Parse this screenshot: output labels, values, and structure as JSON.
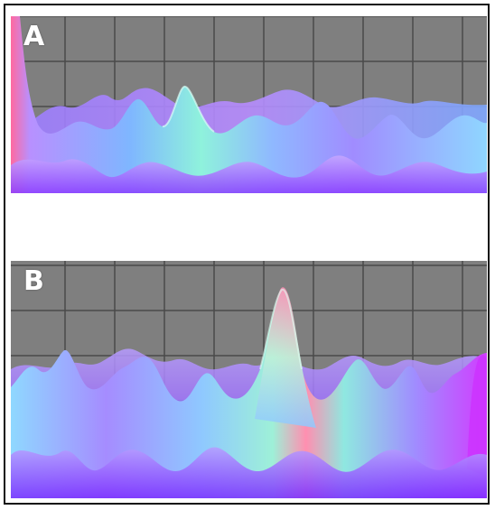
{
  "panels": [
    {
      "label": "A"
    },
    {
      "label": "B"
    }
  ],
  "colors": {
    "background": "#ffffff",
    "border": "#111111",
    "grid_floor": "#7f7f7f",
    "grid_line": "#4a4a4a",
    "surface_low": "#a03cff",
    "surface_mid": "#7fb0ff",
    "surface_aqua": "#8ff2e0",
    "surface_peak": "#ff6a9a"
  }
}
